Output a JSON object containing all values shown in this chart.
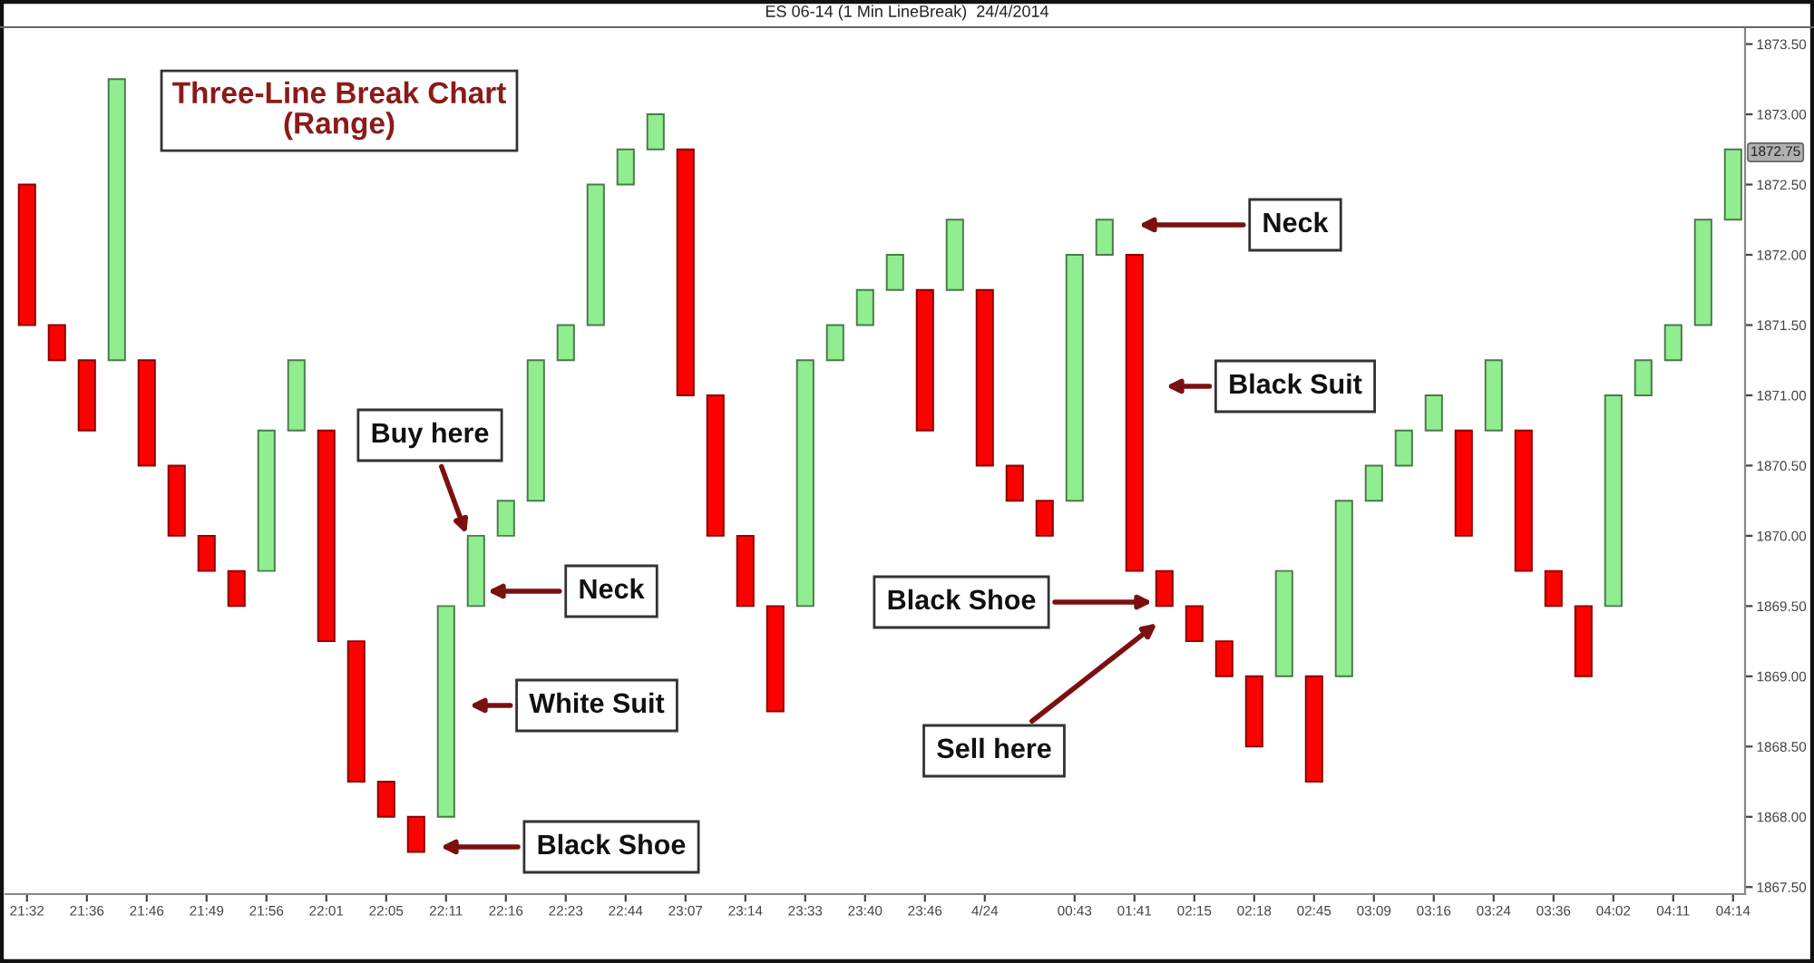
{
  "chart_data": {
    "type": "bar",
    "title": "ES 06-14 (1 Min LineBreak)  24/4/2014",
    "subtitle": "Three-Line Break Chart\n(Range)",
    "categories": [
      "21:32",
      null,
      "21:36",
      null,
      "21:46",
      null,
      "21:49",
      null,
      "21:56",
      null,
      "22:01",
      null,
      "22:05",
      null,
      "22:11",
      null,
      "22:16",
      null,
      "22:23",
      null,
      "22:44",
      null,
      "23:07",
      null,
      "23:14",
      null,
      "23:33",
      null,
      "23:40",
      null,
      "23:46",
      null,
      "4/24",
      null,
      null,
      "00:43",
      null,
      "01:41",
      null,
      "02:15",
      null,
      "02:18",
      null,
      "02:45",
      null,
      "03:09",
      null,
      "03:16",
      null,
      "03:24",
      null,
      "03:36",
      null,
      "04:02",
      null,
      "04:11",
      null,
      "04:14"
    ],
    "base": [
      1872.5,
      1871.5,
      1871.25,
      1871.25,
      1871.25,
      1870.5,
      1870.0,
      1869.75,
      1869.75,
      1870.75,
      1870.75,
      1869.25,
      1868.25,
      1868.0,
      1868.0,
      1869.5,
      1870.0,
      1870.25,
      1871.25,
      1871.5,
      1872.5,
      1872.75,
      1872.75,
      1871.0,
      1870.0,
      1869.5,
      1869.5,
      1871.25,
      1871.5,
      1871.75,
      1871.75,
      1871.75,
      1871.75,
      1870.5,
      1870.25,
      1870.25,
      1872.0,
      1872.0,
      1869.75,
      1869.5,
      1869.25,
      1869.0,
      1869.0,
      1869.0,
      1869.0,
      1870.25,
      1870.5,
      1870.75,
      1870.75,
      1870.75,
      1870.75,
      1869.75,
      1869.5,
      1869.5,
      1871.0,
      1871.25,
      1871.5,
      1872.25
    ],
    "values": [
      -1.0,
      -0.25,
      -0.5,
      2.0,
      -0.75,
      -0.5,
      -0.25,
      -0.25,
      1.0,
      0.5,
      -1.5,
      -1.0,
      -0.25,
      -0.25,
      1.5,
      0.5,
      0.25,
      1.0,
      0.25,
      1.0,
      0.25,
      0.25,
      -1.75,
      -1.0,
      -0.5,
      -0.75,
      1.75,
      0.25,
      0.25,
      0.25,
      -1.0,
      0.5,
      -1.25,
      -0.25,
      -0.25,
      1.75,
      0.25,
      -2.25,
      -0.25,
      -0.25,
      -0.25,
      -0.5,
      0.75,
      -0.75,
      1.25,
      0.25,
      0.25,
      0.25,
      -0.75,
      0.5,
      -1.0,
      -0.25,
      -0.5,
      1.5,
      0.25,
      0.25,
      0.75,
      0.5
    ],
    "colors": [
      "#ff0000",
      "#ff0000",
      "#ff0000",
      "#90ee90",
      "#ff0000",
      "#ff0000",
      "#ff0000",
      "#ff0000",
      "#90ee90",
      "#90ee90",
      "#ff0000",
      "#ff0000",
      "#ff0000",
      "#ff0000",
      "#90ee90",
      "#90ee90",
      "#90ee90",
      "#90ee90",
      "#90ee90",
      "#90ee90",
      "#90ee90",
      "#90ee90",
      "#ff0000",
      "#ff0000",
      "#ff0000",
      "#ff0000",
      "#90ee90",
      "#90ee90",
      "#90ee90",
      "#90ee90",
      "#ff0000",
      "#90ee90",
      "#ff0000",
      "#ff0000",
      "#ff0000",
      "#90ee90",
      "#90ee90",
      "#ff0000",
      "#ff0000",
      "#ff0000",
      "#ff0000",
      "#ff0000",
      "#90ee90",
      "#ff0000",
      "#90ee90",
      "#90ee90",
      "#90ee90",
      "#90ee90",
      "#ff0000",
      "#90ee90",
      "#ff0000",
      "#ff0000",
      "#ff0000",
      "#90ee90",
      "#90ee90",
      "#90ee90",
      "#90ee90",
      "#90ee90"
    ],
    "ylim": [
      1867.45,
      1873.62
    ],
    "yticks": [
      {
        "value": 1867.5,
        "label": "1867.50"
      },
      {
        "value": 1868.0,
        "label": "1868.00"
      },
      {
        "value": 1868.5,
        "label": "1868.50"
      },
      {
        "value": 1869.0,
        "label": "1869.00"
      },
      {
        "value": 1869.5,
        "label": "1869.50"
      },
      {
        "value": 1870.0,
        "label": "1870.00"
      },
      {
        "value": 1870.5,
        "label": "1870.50"
      },
      {
        "value": 1871.0,
        "label": "1871.00"
      },
      {
        "value": 1871.5,
        "label": "1871.50"
      },
      {
        "value": 1872.0,
        "label": "1872.00"
      },
      {
        "value": 1872.5,
        "label": "1872.50"
      },
      {
        "value": 1873.0,
        "label": "1873.00"
      },
      {
        "value": 1873.5,
        "label": "1873.50"
      }
    ],
    "annotations": [
      "Buy here",
      "Neck",
      "White Suit",
      "Black Shoe",
      "Neck",
      "Black Suit",
      "Black Shoe",
      "Sell here",
      "1872.75"
    ]
  }
}
